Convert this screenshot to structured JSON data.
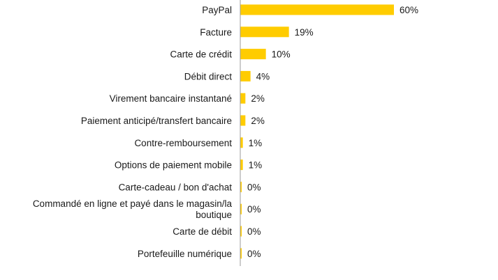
{
  "chart_data": {
    "type": "bar",
    "orientation": "horizontal",
    "categories": [
      "PayPal",
      "Facture",
      "Carte de crédit",
      "Débit direct",
      "Virement bancaire instantané",
      "Paiement anticipé/transfert bancaire",
      "Contre-remboursement",
      "Options de paiement mobile",
      "Carte-cadeau / bon d'achat",
      "Commandé en ligne et payé dans le magasin/la boutique",
      "Carte de débit",
      "Portefeuille numérique"
    ],
    "values": [
      60,
      19,
      10,
      4,
      2,
      2,
      1,
      1,
      0,
      0,
      0,
      0
    ],
    "value_labels": [
      "60%",
      "19%",
      "10%",
      "4%",
      "2%",
      "2%",
      "1%",
      "1%",
      "0%",
      "0%",
      "0%",
      "0%"
    ],
    "xlim": [
      0,
      60
    ],
    "grid": false,
    "bar_color": "#FFCC00",
    "axis_color": "#9a9a9a"
  }
}
